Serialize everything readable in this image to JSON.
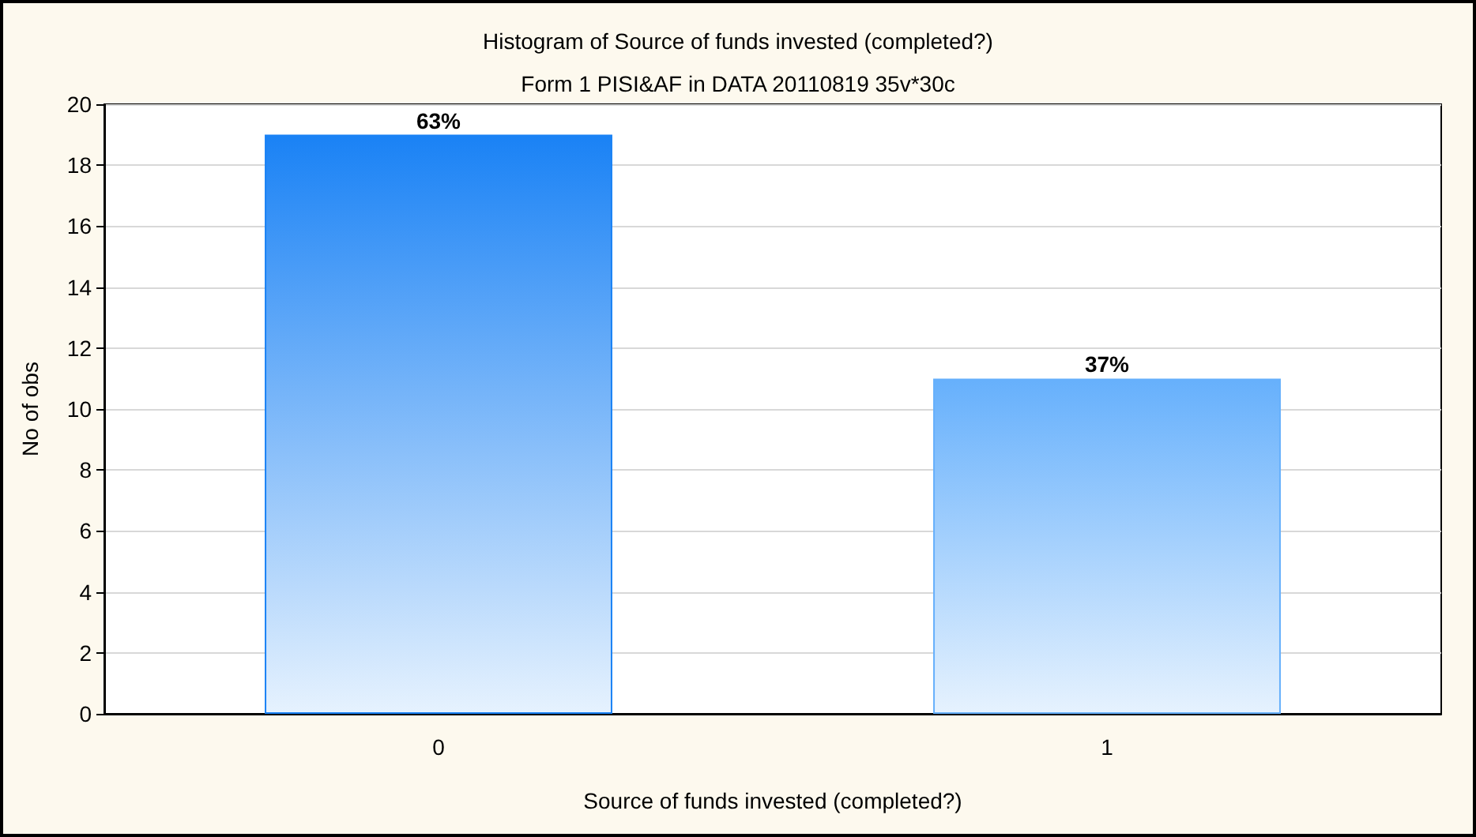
{
  "chart_data": {
    "type": "bar",
    "title": "Histogram of Source of funds invested (completed?)",
    "subtitle": "Form 1 PISI&AF in DATA 20110819 35v*30c",
    "xlabel": "Source of funds invested (completed?)",
    "ylabel": "No of obs",
    "categories": [
      "0",
      "1"
    ],
    "values": [
      19,
      11
    ],
    "colors": [
      "#1a82f5",
      "#66b0fc"
    ],
    "annotations": [
      {
        "text": "63%",
        "x": "0",
        "y": 19
      },
      {
        "text": "37%",
        "x": "1",
        "y": 11
      }
    ],
    "ylim": [
      0,
      20
    ],
    "yticks": [
      0,
      2,
      4,
      6,
      8,
      10,
      12,
      14,
      16,
      18,
      20
    ],
    "grid": "y"
  }
}
